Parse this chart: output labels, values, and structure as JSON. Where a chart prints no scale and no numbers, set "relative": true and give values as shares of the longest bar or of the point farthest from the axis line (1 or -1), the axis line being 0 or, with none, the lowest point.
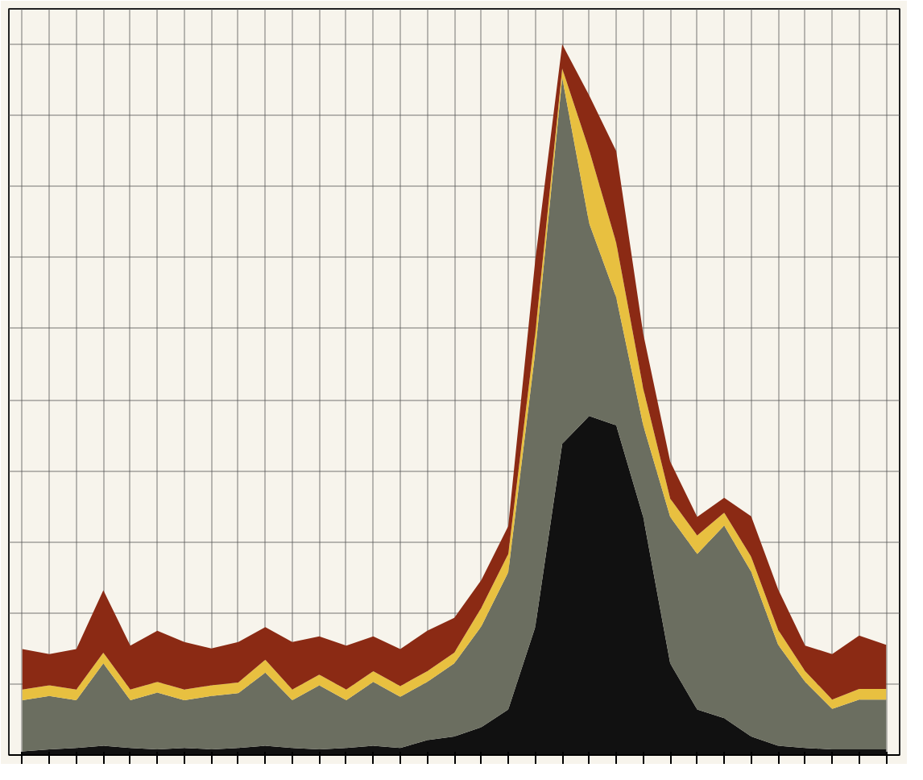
{
  "chart_data": {
    "type": "area",
    "stacked": true,
    "relative": true,
    "grid": true,
    "categories": [
      null,
      null,
      null,
      null,
      null,
      null,
      null,
      null,
      null,
      null,
      null,
      null,
      null,
      null,
      null,
      null,
      null,
      null,
      null,
      null,
      null,
      null,
      null,
      null,
      null,
      null,
      null,
      null,
      null,
      null,
      null,
      null,
      null
    ],
    "series": [
      {
        "color": "#111111",
        "values": [
          0.005,
          0.008,
          0.01,
          0.013,
          0.01,
          0.008,
          0.01,
          0.008,
          0.01,
          0.013,
          0.01,
          0.008,
          0.01,
          0.013,
          0.01,
          0.021,
          0.026,
          0.039,
          0.064,
          0.18,
          0.438,
          0.477,
          0.464,
          0.335,
          0.129,
          0.064,
          0.052,
          0.026,
          0.013,
          0.01,
          0.008,
          0.008,
          0.008
        ]
      },
      {
        "color": "#6b6e60",
        "values": [
          0.072,
          0.075,
          0.067,
          0.116,
          0.067,
          0.08,
          0.067,
          0.075,
          0.077,
          0.103,
          0.067,
          0.09,
          0.067,
          0.09,
          0.072,
          0.082,
          0.103,
          0.142,
          0.193,
          0.387,
          0.515,
          0.271,
          0.18,
          0.129,
          0.206,
          0.219,
          0.271,
          0.232,
          0.142,
          0.093,
          0.057,
          0.07,
          0.07
        ]
      },
      {
        "color": "#e8c040",
        "values": [
          0.015,
          0.015,
          0.015,
          0.015,
          0.015,
          0.015,
          0.015,
          0.015,
          0.015,
          0.018,
          0.015,
          0.015,
          0.015,
          0.015,
          0.015,
          0.015,
          0.015,
          0.026,
          0.026,
          0.026,
          0.013,
          0.103,
          0.077,
          0.052,
          0.026,
          0.026,
          0.018,
          0.021,
          0.021,
          0.015,
          0.013,
          0.015,
          0.015
        ]
      },
      {
        "color": "#8b2a14",
        "values": [
          0.057,
          0.044,
          0.057,
          0.088,
          0.062,
          0.072,
          0.067,
          0.052,
          0.057,
          0.046,
          0.067,
          0.054,
          0.062,
          0.049,
          0.052,
          0.057,
          0.049,
          0.039,
          0.039,
          0.103,
          0.034,
          0.077,
          0.129,
          0.077,
          0.052,
          0.026,
          0.021,
          0.057,
          0.057,
          0.036,
          0.064,
          0.075,
          0.062
        ]
      }
    ]
  }
}
